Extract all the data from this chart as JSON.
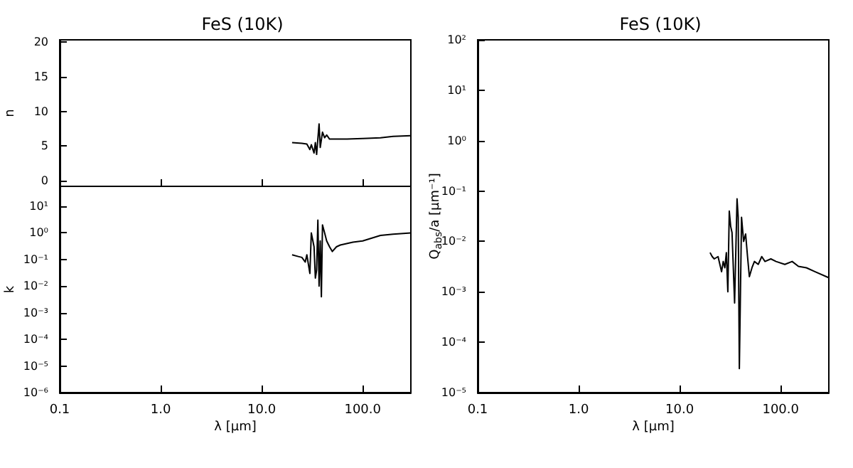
{
  "chart_data": [
    {
      "type": "line",
      "title": "FeS (10K)",
      "ylabel": "n",
      "tick_labels": "y",
      "log": "x",
      "xlim": [
        0.1,
        300
      ],
      "xticks": [
        {
          "value": 0.1,
          "label": null
        },
        {
          "value": 1,
          "label": null
        },
        {
          "value": 10,
          "label": null
        },
        {
          "value": 100,
          "label": null
        }
      ],
      "ylim": [
        -0.8,
        20.3
      ],
      "yticks": [
        0,
        5,
        10,
        15,
        20
      ],
      "series": [
        {
          "color": "#000000",
          "x": [
            20,
            25,
            28,
            30,
            31,
            33,
            34,
            35,
            37,
            38,
            40,
            42,
            44,
            47,
            50,
            70,
            100,
            150,
            200,
            300
          ],
          "values": [
            5.5,
            5.4,
            5.3,
            4.5,
            5.2,
            4.0,
            5.5,
            3.8,
            8.2,
            4.8,
            7.0,
            6.2,
            6.6,
            6.0,
            6.0,
            6.0,
            6.1,
            6.2,
            6.4,
            6.5
          ]
        }
      ]
    },
    {
      "type": "line",
      "xlabel": "λ [µm]",
      "ylabel": "k",
      "log": "xy",
      "xlim": [
        0.1,
        300
      ],
      "xticks": [
        {
          "value": 0.1,
          "label": "0.1"
        },
        {
          "value": 1,
          "label": "1.0"
        },
        {
          "value": 10,
          "label": "10.0"
        },
        {
          "value": 100,
          "label": "100.0"
        }
      ],
      "ylim": [
        1e-06,
        56
      ],
      "yticks": [
        {
          "value": 1e-06,
          "label": "10⁻⁶"
        },
        {
          "value": 1e-05,
          "label": "10⁻⁵"
        },
        {
          "value": 0.0001,
          "label": "10⁻⁴"
        },
        {
          "value": 0.001,
          "label": "10⁻³"
        },
        {
          "value": 0.01,
          "label": "10⁻²"
        },
        {
          "value": 0.1,
          "label": "10⁻¹"
        },
        {
          "value": 1,
          "label": "10⁰"
        },
        {
          "value": 10,
          "label": "10¹"
        }
      ],
      "series": [
        {
          "color": "#000000",
          "x": [
            20,
            23,
            25,
            27,
            28,
            30,
            31,
            33,
            34,
            35,
            36,
            37,
            38,
            39,
            40,
            42,
            44,
            47,
            50,
            55,
            60,
            80,
            100,
            150,
            200,
            300
          ],
          "values": [
            0.15,
            0.13,
            0.12,
            0.08,
            0.15,
            0.03,
            1.0,
            0.3,
            0.02,
            0.04,
            3.0,
            0.01,
            0.5,
            0.004,
            2,
            1,
            0.5,
            0.3,
            0.2,
            0.3,
            0.35,
            0.45,
            0.5,
            0.8,
            0.9,
            1.0
          ]
        }
      ]
    },
    {
      "type": "line",
      "title": "FeS (10K)",
      "xlabel": "λ [µm]",
      "ylabel": "Q$_{abs}$/a [µm⁻¹]",
      "log": "xy",
      "xlim": [
        0.1,
        300
      ],
      "xticks": [
        {
          "value": 0.1,
          "label": "0.1"
        },
        {
          "value": 1,
          "label": "1.0"
        },
        {
          "value": 10,
          "label": "10.0"
        },
        {
          "value": 100,
          "label": "100.0"
        }
      ],
      "ylim": [
        1e-05,
        100
      ],
      "yticks": [
        {
          "value": 1e-05,
          "label": "10⁻⁵"
        },
        {
          "value": 0.0001,
          "label": "10⁻⁴"
        },
        {
          "value": 0.001,
          "label": "10⁻³"
        },
        {
          "value": 0.01,
          "label": "10⁻²"
        },
        {
          "value": 0.1,
          "label": "10⁻¹"
        },
        {
          "value": 1,
          "label": "10⁰"
        },
        {
          "value": 10,
          "label": "10¹"
        },
        {
          "value": 100,
          "label": "10²"
        }
      ],
      "series": [
        {
          "color": "#000000",
          "x": [
            20,
            21,
            22,
            24,
            26,
            27,
            28,
            29,
            30,
            31,
            32,
            33,
            35,
            37,
            38,
            39,
            41,
            43,
            45,
            47,
            49,
            52,
            55,
            60,
            65,
            70,
            80,
            90,
            110,
            130,
            150,
            180,
            220,
            300
          ],
          "values": [
            0.006,
            0.005,
            0.0045,
            0.005,
            0.0025,
            0.004,
            0.003,
            0.006,
            0.001,
            0.04,
            0.02,
            0.015,
            0.0006,
            0.07,
            0.03,
            3e-05,
            0.03,
            0.01,
            0.014,
            0.005,
            0.002,
            0.003,
            0.004,
            0.0035,
            0.005,
            0.004,
            0.0045,
            0.004,
            0.0035,
            0.004,
            0.0032,
            0.003,
            0.0025,
            0.0019
          ]
        }
      ]
    }
  ]
}
